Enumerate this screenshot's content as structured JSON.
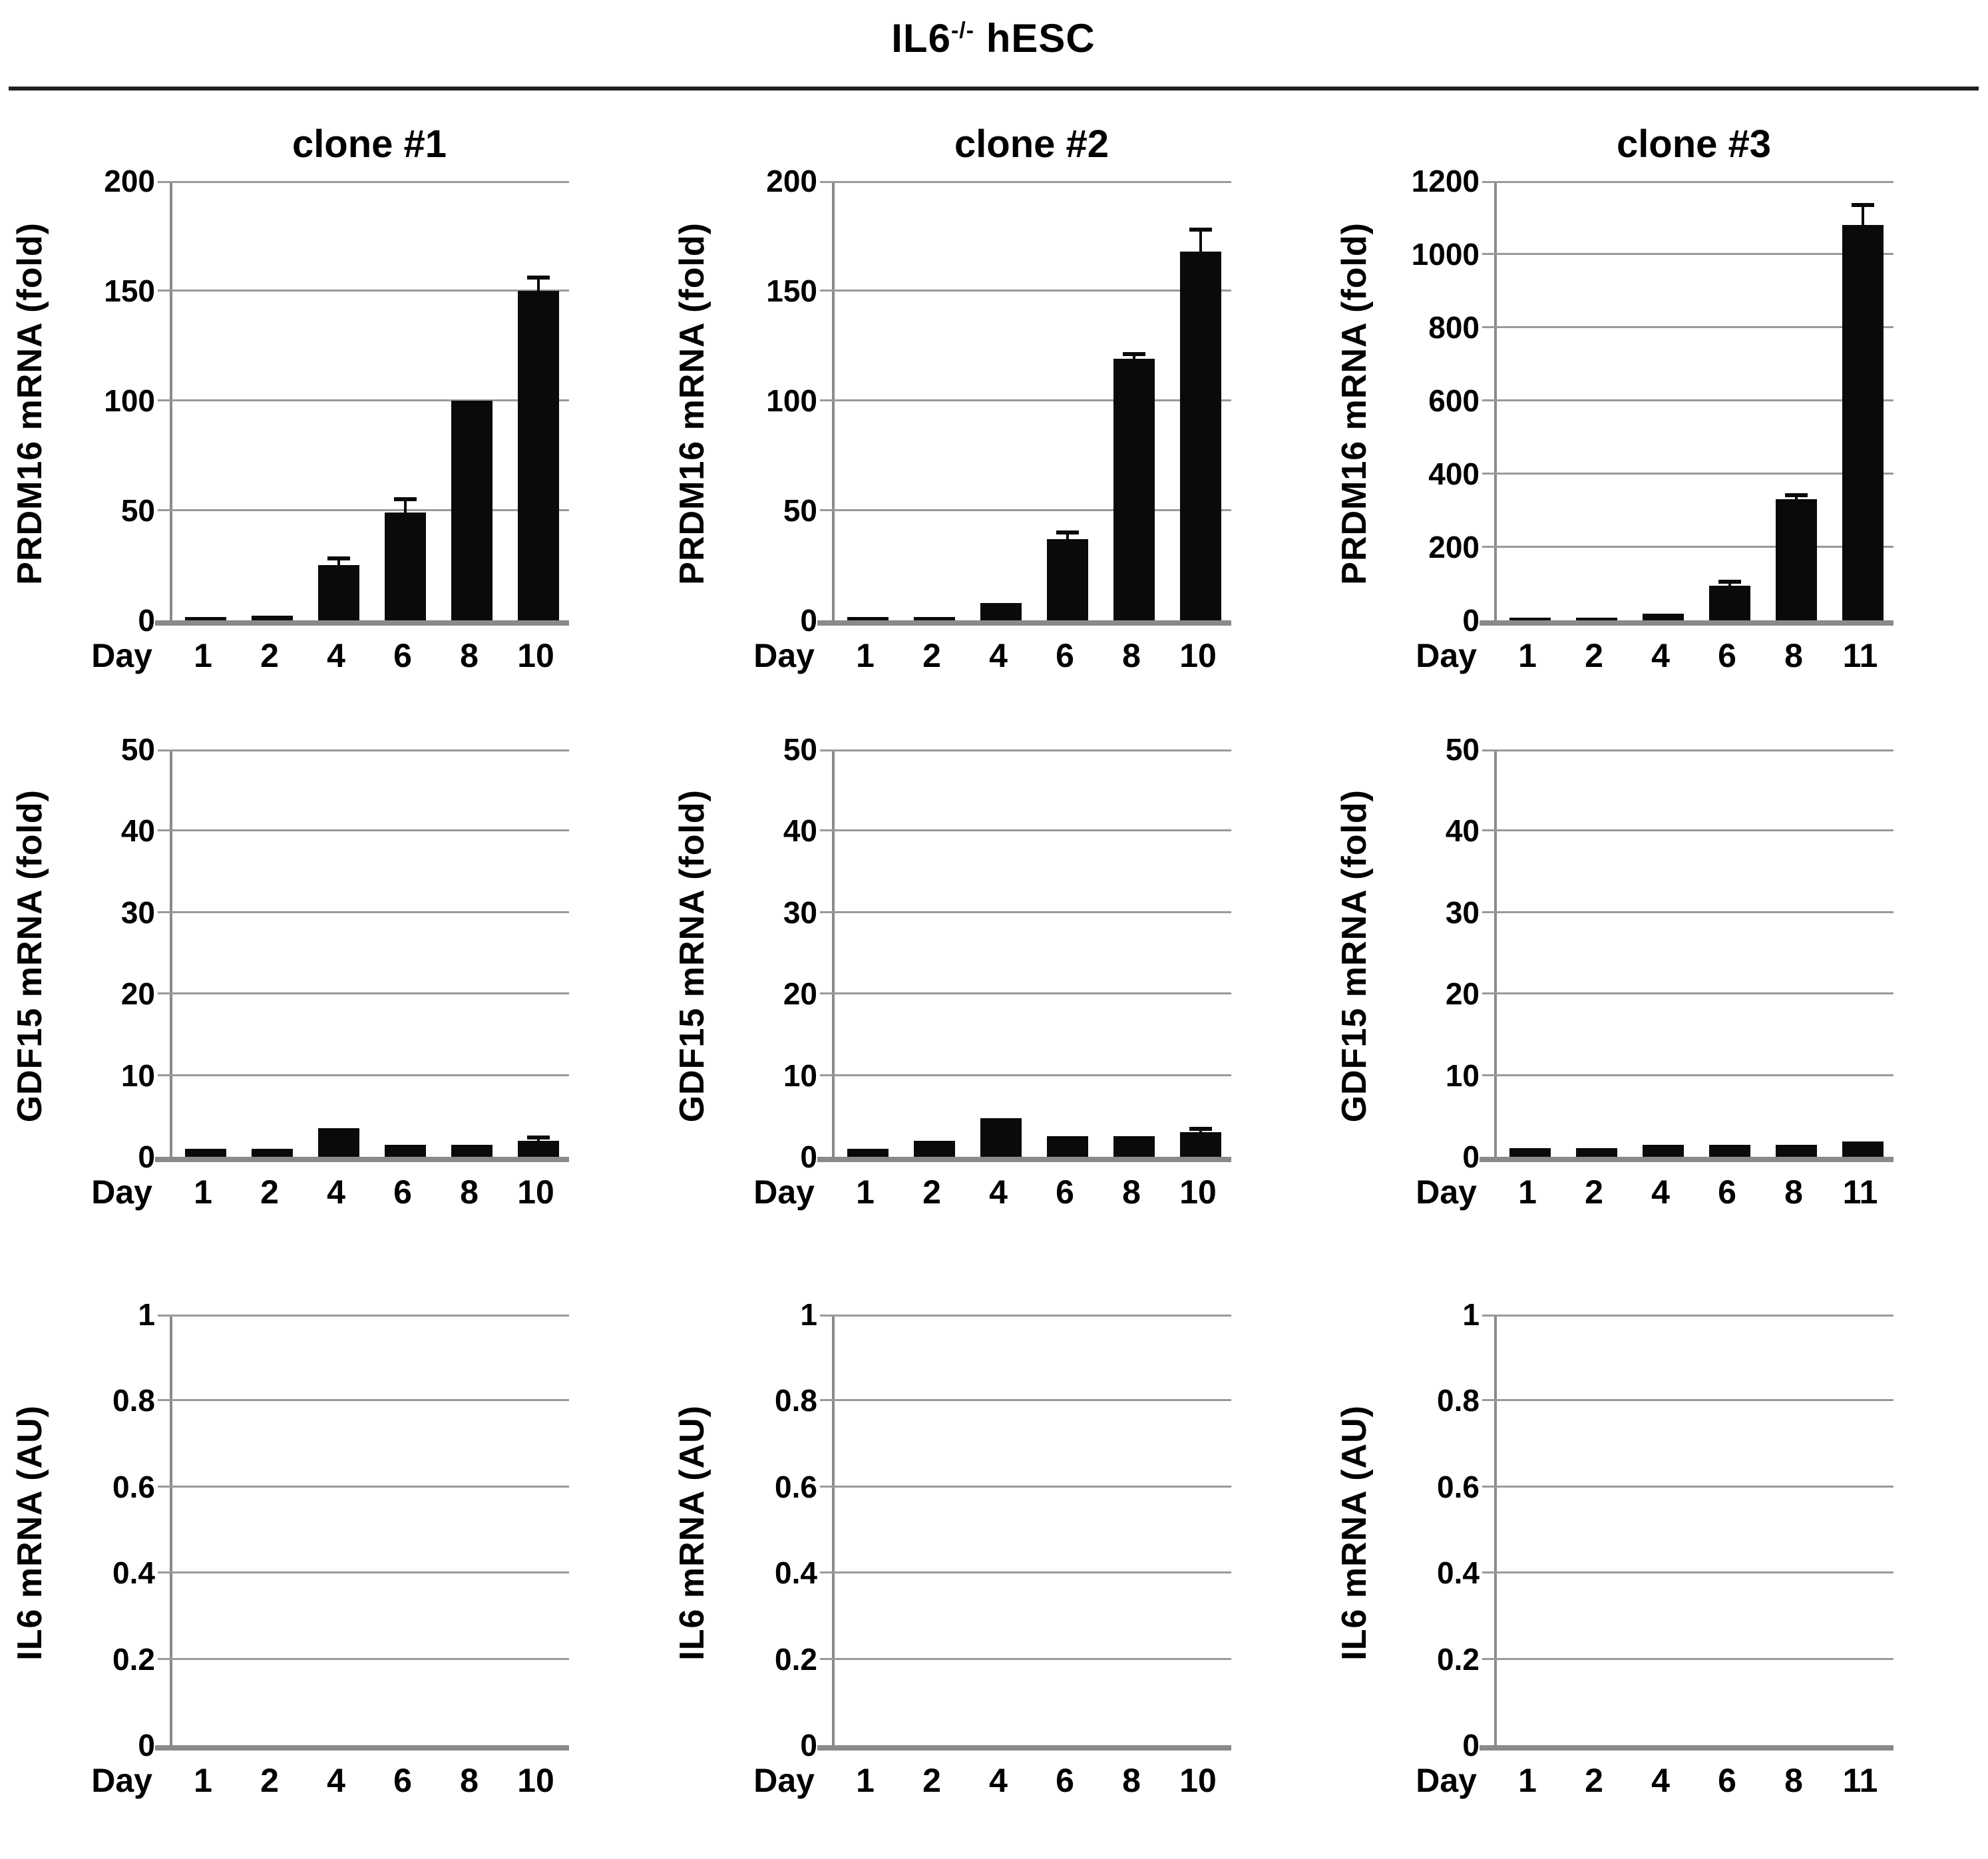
{
  "figure": {
    "title": {
      "base": "IL6",
      "superscript": "-/-",
      "rest": " hESC"
    }
  },
  "colors": {
    "bar": "#0a0a0a",
    "gridline": "#999999",
    "axis": "#8a8a8a",
    "text": "#000000",
    "background": "#ffffff",
    "title_rule": "#222222"
  },
  "chart_data": [
    {
      "id": "prdm16-clone1",
      "row": 1,
      "col": 1,
      "type": "bar",
      "header": "clone #1",
      "ylabel": "PRDM16 mRNA (fold)",
      "day_label": "Day",
      "ylim": [
        0,
        200
      ],
      "tick_values": [
        0,
        50,
        100,
        150,
        200
      ],
      "tick_labels": [
        "0",
        "50",
        "100",
        "150",
        "200"
      ],
      "categories": [
        "1",
        "2",
        "4",
        "6",
        "8",
        "10"
      ],
      "values": [
        1.5,
        2,
        25,
        49,
        100,
        150
      ],
      "errors": [
        0,
        0,
        3,
        6,
        0,
        6
      ],
      "grid": true,
      "legend": "none"
    },
    {
      "id": "prdm16-clone2",
      "row": 1,
      "col": 2,
      "type": "bar",
      "header": "clone #2",
      "ylabel": "PRDM16 mRNA (fold)",
      "day_label": "Day",
      "ylim": [
        0,
        200
      ],
      "tick_values": [
        0,
        50,
        100,
        150,
        200
      ],
      "tick_labels": [
        "0",
        "50",
        "100",
        "150",
        "200"
      ],
      "categories": [
        "1",
        "2",
        "4",
        "6",
        "8",
        "10"
      ],
      "values": [
        1.5,
        1.5,
        8,
        37,
        119,
        168
      ],
      "errors": [
        0,
        0,
        0,
        3,
        2,
        10
      ],
      "grid": true,
      "legend": "none"
    },
    {
      "id": "prdm16-clone3",
      "row": 1,
      "col": 3,
      "type": "bar",
      "header": "clone #3",
      "ylabel": "PRDM16 mRNA (fold)",
      "day_label": "Day",
      "ylim": [
        0,
        1200
      ],
      "tick_values": [
        0,
        200,
        400,
        600,
        800,
        1000,
        1200
      ],
      "tick_labels": [
        "0",
        "200",
        "400",
        "600",
        "800",
        "1000",
        "1200"
      ],
      "categories": [
        "1",
        "2",
        "4",
        "6",
        "8",
        "11"
      ],
      "values": [
        8,
        8,
        18,
        95,
        330,
        1080
      ],
      "errors": [
        0,
        0,
        0,
        10,
        10,
        55
      ],
      "grid": true,
      "legend": "none"
    },
    {
      "id": "gdf15-clone1",
      "row": 2,
      "col": 1,
      "type": "bar",
      "ylabel": "GDF15 mRNA (fold)",
      "day_label": "Day",
      "ylim": [
        0,
        50
      ],
      "tick_values": [
        0,
        10,
        20,
        30,
        40,
        50
      ],
      "tick_labels": [
        "0",
        "10",
        "20",
        "30",
        "40",
        "50"
      ],
      "categories": [
        "1",
        "2",
        "4",
        "6",
        "8",
        "10"
      ],
      "values": [
        1,
        1,
        3.5,
        1.5,
        1.5,
        2
      ],
      "errors": [
        0,
        0,
        0,
        0,
        0,
        0.4
      ],
      "grid": true,
      "legend": "none"
    },
    {
      "id": "gdf15-clone2",
      "row": 2,
      "col": 2,
      "type": "bar",
      "ylabel": "GDF15 mRNA (fold)",
      "day_label": "Day",
      "ylim": [
        0,
        50
      ],
      "tick_values": [
        0,
        10,
        20,
        30,
        40,
        50
      ],
      "tick_labels": [
        "0",
        "10",
        "20",
        "30",
        "40",
        "50"
      ],
      "categories": [
        "1",
        "2",
        "4",
        "6",
        "8",
        "10"
      ],
      "values": [
        1,
        2,
        4.7,
        2.5,
        2.5,
        3
      ],
      "errors": [
        0,
        0,
        0,
        0,
        0,
        0.4
      ],
      "grid": true,
      "legend": "none"
    },
    {
      "id": "gdf15-clone3",
      "row": 2,
      "col": 3,
      "type": "bar",
      "ylabel": "GDF15 mRNA (fold)",
      "day_label": "Day",
      "ylim": [
        0,
        50
      ],
      "tick_values": [
        0,
        10,
        20,
        30,
        40,
        50
      ],
      "tick_labels": [
        "0",
        "10",
        "20",
        "30",
        "40",
        "50"
      ],
      "categories": [
        "1",
        "2",
        "4",
        "6",
        "8",
        "11"
      ],
      "values": [
        1.1,
        1.1,
        1.5,
        1.5,
        1.5,
        1.9
      ],
      "errors": [
        0,
        0,
        0,
        0,
        0,
        0
      ],
      "grid": true,
      "legend": "none"
    },
    {
      "id": "il6-clone1",
      "row": 3,
      "col": 1,
      "type": "bar",
      "ylabel": "IL6 mRNA (AU)",
      "day_label": "Day",
      "ylim": [
        0,
        1
      ],
      "tick_values": [
        0,
        0.2,
        0.4,
        0.6,
        0.8,
        1
      ],
      "tick_labels": [
        "0",
        "0.2",
        "0.4",
        "0.6",
        "0.8",
        "1"
      ],
      "categories": [
        "1",
        "2",
        "4",
        "6",
        "8",
        "10"
      ],
      "values": [
        0,
        0,
        0,
        0,
        0,
        0
      ],
      "errors": [
        0,
        0,
        0,
        0,
        0,
        0
      ],
      "grid": true,
      "legend": "none"
    },
    {
      "id": "il6-clone2",
      "row": 3,
      "col": 2,
      "type": "bar",
      "ylabel": "IL6 mRNA (AU)",
      "day_label": "Day",
      "ylim": [
        0,
        1
      ],
      "tick_values": [
        0,
        0.2,
        0.4,
        0.6,
        0.8,
        1
      ],
      "tick_labels": [
        "0",
        "0.2",
        "0.4",
        "0.6",
        "0.8",
        "1"
      ],
      "categories": [
        "1",
        "2",
        "4",
        "6",
        "8",
        "10"
      ],
      "values": [
        0,
        0,
        0,
        0,
        0,
        0
      ],
      "errors": [
        0,
        0,
        0,
        0,
        0,
        0
      ],
      "grid": true,
      "legend": "none"
    },
    {
      "id": "il6-clone3",
      "row": 3,
      "col": 3,
      "type": "bar",
      "ylabel": "IL6 mRNA (AU)",
      "day_label": "Day",
      "ylim": [
        0,
        1
      ],
      "tick_values": [
        0,
        0.2,
        0.4,
        0.6,
        0.8,
        1
      ],
      "tick_labels": [
        "0",
        "0.2",
        "0.4",
        "0.6",
        "0.8",
        "1"
      ],
      "categories": [
        "1",
        "2",
        "4",
        "6",
        "8",
        "11"
      ],
      "values": [
        0,
        0,
        0,
        0,
        0,
        0
      ],
      "errors": [
        0,
        0,
        0,
        0,
        0,
        0
      ],
      "grid": true,
      "legend": "none"
    }
  ]
}
